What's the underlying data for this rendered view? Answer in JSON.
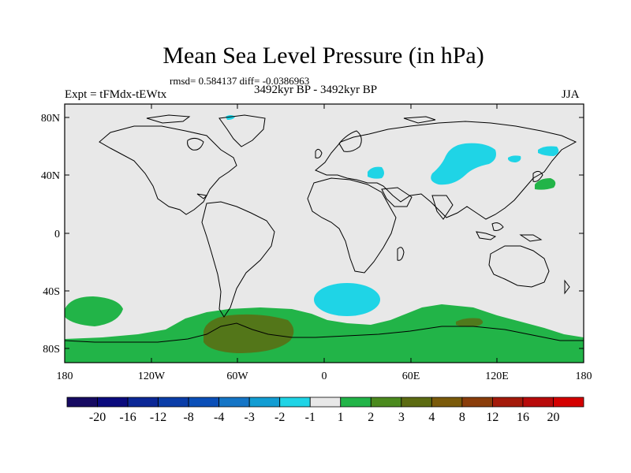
{
  "title": "Mean Sea Level Pressure (in hPa)",
  "stats": "rmsd= 0.584137 diff= -0.0386963",
  "experiment": "Expt = tFMdx-tEWtx",
  "period": "3492kyr BP - 3492kyr BP",
  "season": "JJA",
  "map": {
    "lat_labels": [
      "80N",
      "40N",
      "0",
      "40S",
      "80S"
    ],
    "lon_labels": [
      "180",
      "120W",
      "60W",
      "0",
      "60E",
      "120E",
      "180"
    ],
    "regions": [
      {
        "name": "mongolia-negative",
        "class": "-2 to -1"
      },
      {
        "name": "kamchatka-negative",
        "class": "-2 to -1"
      },
      {
        "name": "black-sea-negative",
        "class": "-2 to -1"
      },
      {
        "name": "south-atlantic-negative",
        "class": "-2 to -1"
      },
      {
        "name": "antarctic-positive",
        "class": "1 to 2"
      },
      {
        "name": "antarctic-peninsula-positive",
        "class": "3 to 4"
      },
      {
        "name": "japan-positive",
        "class": "1 to 2"
      }
    ]
  },
  "colorbar": {
    "labels": [
      "-20",
      "-16",
      "-12",
      "-8",
      "-4",
      "-3",
      "-2",
      "-1",
      "1",
      "2",
      "3",
      "4",
      "8",
      "12",
      "16",
      "20"
    ],
    "colors": [
      "#160a62",
      "#0a0a7d",
      "#0b2796",
      "#0a3da8",
      "#0a4fb8",
      "#1475c6",
      "#129dd3",
      "#1fd4e6",
      "#e8e8e8",
      "#22b448",
      "#4b8a1e",
      "#5c6b12",
      "#7a5a0a",
      "#8a3d0a",
      "#a41a0a",
      "#b80a0a",
      "#d40000"
    ]
  }
}
